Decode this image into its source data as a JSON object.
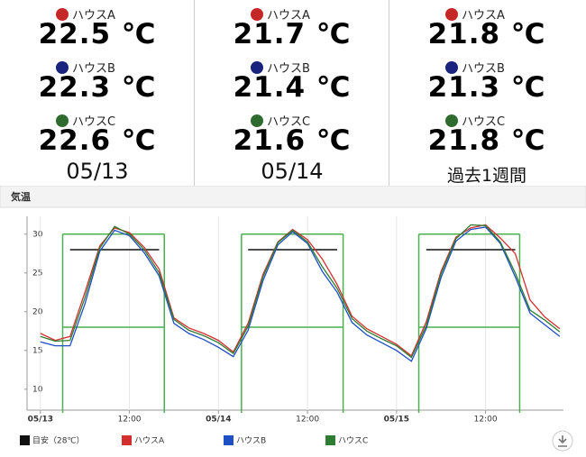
{
  "stations": [
    {
      "houses": [
        {
          "label": "ハウスA",
          "color": "#c62828",
          "temp": "22.5 ℃"
        },
        {
          "label": "ハウスB",
          "color": "#1a237e",
          "temp": "22.3 ℃"
        },
        {
          "label": "ハウスC",
          "color": "#2e6b2e",
          "temp": "22.6 ℃"
        }
      ],
      "date": "05/13"
    },
    {
      "houses": [
        {
          "label": "ハウスA",
          "color": "#c62828",
          "temp": "21.7 ℃"
        },
        {
          "label": "ハウスB",
          "color": "#1a237e",
          "temp": "21.4 ℃"
        },
        {
          "label": "ハウスC",
          "color": "#2e6b2e",
          "temp": "21.6 ℃"
        }
      ],
      "date": "05/14"
    },
    {
      "houses": [
        {
          "label": "ハウスA",
          "color": "#c62828",
          "temp": "21.8 ℃"
        },
        {
          "label": "ハウスB",
          "color": "#1a237e",
          "temp": "21.3 ℃"
        },
        {
          "label": "ハウスC",
          "color": "#2e6b2e",
          "temp": "21.8 ℃"
        }
      ],
      "date": "過去1週間"
    }
  ],
  "chart_data": {
    "type": "line",
    "title": "気温",
    "x": [
      0,
      2,
      4,
      6,
      8,
      10,
      12,
      14,
      16,
      18,
      20,
      22,
      24,
      26,
      28,
      30,
      32,
      34,
      36,
      38,
      40,
      42,
      44,
      46,
      48,
      50,
      52,
      54,
      56,
      58,
      60,
      62,
      64,
      66,
      68,
      70
    ],
    "xlim": [
      -1.8,
      70.5
    ],
    "xticks": [
      {
        "value": 0,
        "label": "05/13"
      },
      {
        "value": 12,
        "label": "12:00"
      },
      {
        "value": 24,
        "label": "05/14"
      },
      {
        "value": 36,
        "label": "12:00"
      },
      {
        "value": 48,
        "label": "05/15"
      },
      {
        "value": 60,
        "label": "12:00"
      }
    ],
    "ylim": [
      7.3,
      32.3
    ],
    "yticks": [
      10,
      15,
      20,
      25,
      30
    ],
    "bands": [
      {
        "start": 3,
        "end": 16.7
      },
      {
        "start": 27.1,
        "end": 40.8
      },
      {
        "start": 51,
        "end": 64.6
      }
    ],
    "band_levels": [
      30,
      18
    ],
    "band_color": "#4caf50",
    "series": [
      {
        "name": "目安（28℃）",
        "color": "#111111",
        "values": [
          null,
          null,
          28,
          28,
          28,
          28,
          28,
          28,
          28,
          null,
          null,
          null,
          null,
          null,
          28,
          28,
          28,
          28,
          28,
          28,
          28,
          null,
          null,
          null,
          null,
          null,
          28,
          28,
          28,
          28,
          28,
          28,
          28,
          null,
          null,
          null
        ]
      },
      {
        "name": "ハウスA",
        "color": "#d32f2f",
        "values": [
          17.2,
          16.3,
          16.8,
          22.5,
          28.5,
          30.8,
          30.2,
          28.3,
          25.5,
          19.2,
          17.9,
          17.2,
          16.3,
          14.8,
          18.5,
          24.8,
          29,
          30.6,
          29.3,
          26.8,
          23.5,
          19.4,
          17.8,
          16.8,
          15.8,
          14.3,
          18.7,
          25.2,
          29.6,
          30.8,
          31.2,
          29.5,
          27.5,
          21.5,
          19.3,
          17.8
        ]
      },
      {
        "name": "ハウスB",
        "color": "#1f4fc4",
        "values": [
          16.1,
          15.6,
          15.6,
          21,
          27.8,
          30.5,
          29.8,
          27.6,
          24.6,
          18.5,
          17.2,
          16.4,
          15.4,
          14.2,
          17.6,
          24,
          28.6,
          30.3,
          28.8,
          25.2,
          22.5,
          18.6,
          17,
          16,
          15,
          13.6,
          17.8,
          24.4,
          29.1,
          30.6,
          30.9,
          28.8,
          24.5,
          19.8,
          18.3,
          16.8
        ]
      },
      {
        "name": "ハウスC",
        "color": "#2e7d32",
        "values": [
          16.8,
          16.2,
          16.3,
          21.8,
          28.2,
          31,
          30,
          28,
          25,
          19,
          17.6,
          16.9,
          16,
          14.6,
          18.1,
          24.5,
          28.9,
          30.5,
          29,
          25.8,
          23,
          19.1,
          17.5,
          16.5,
          15.6,
          14.1,
          18.2,
          24.9,
          29.4,
          31.2,
          31.1,
          29,
          25,
          20.2,
          18.9,
          17.4
        ]
      }
    ]
  }
}
